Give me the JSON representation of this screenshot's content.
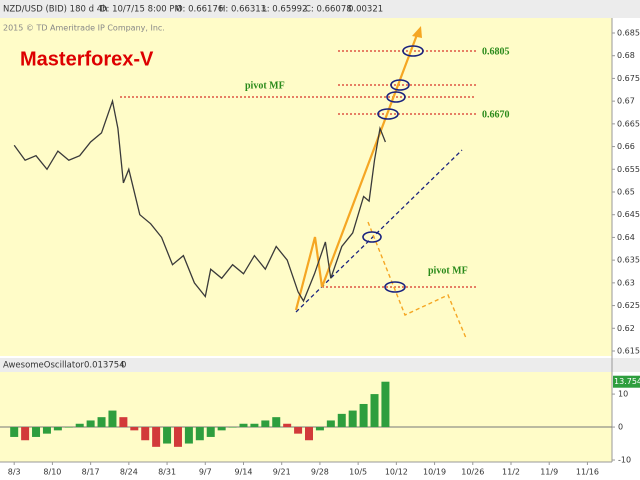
{
  "chart_data": [
    {
      "type": "line",
      "info": [
        "NZD/USD (BID) 180 d 4h",
        "D: 10/7/15 8:00 PM",
        "O: 0.66176",
        "H: 0.66313",
        "L: 0.65992",
        "C: 0.66078",
        "0.00321"
      ],
      "copyright": "2015 © TD Ameritrade IP Company, Inc.",
      "title": "Masterforex-V",
      "annotations": [
        "pivot MF",
        "0.6805",
        "0.6670",
        "pivot MF"
      ],
      "x": [
        0,
        2,
        4,
        6,
        8,
        10,
        12,
        14,
        16,
        18,
        19,
        20,
        21,
        23,
        25,
        27,
        29,
        31,
        33,
        35,
        36,
        38,
        40,
        42,
        44,
        46,
        48,
        50,
        52,
        53,
        55,
        57,
        58,
        60,
        62,
        64,
        65,
        66,
        67,
        68
      ],
      "values": [
        0.6603,
        0.657,
        0.658,
        0.655,
        0.659,
        0.657,
        0.658,
        0.661,
        0.663,
        0.67,
        0.664,
        0.652,
        0.655,
        0.645,
        0.643,
        0.64,
        0.634,
        0.636,
        0.63,
        0.627,
        0.633,
        0.631,
        0.634,
        0.632,
        0.636,
        0.633,
        0.638,
        0.635,
        0.628,
        0.626,
        0.632,
        0.639,
        0.631,
        0.638,
        0.641,
        0.649,
        0.648,
        0.657,
        0.664,
        0.661
      ],
      "color": "#3a3a3a",
      "xlim": [
        -2.6,
        109.5
      ],
      "ylim": [
        0.6139,
        0.6883
      ],
      "yticks": [
        0.615,
        0.62,
        0.625,
        0.63,
        0.635,
        0.64,
        0.645,
        0.65,
        0.655,
        0.66,
        0.665,
        0.67,
        0.675,
        0.68,
        0.685
      ]
    },
    {
      "type": "bar",
      "title": "AwesomeOscillator",
      "info": [
        "0.013754",
        "0"
      ],
      "x": [
        0,
        2,
        4,
        6,
        8,
        10,
        12,
        14,
        16,
        18,
        20,
        22,
        24,
        26,
        28,
        30,
        32,
        34,
        36,
        38,
        40,
        42,
        44,
        46,
        48,
        50,
        52,
        54,
        56,
        58,
        60,
        62,
        64,
        66,
        68
      ],
      "values": [
        -3,
        -4,
        -3,
        -2,
        -1,
        0,
        1,
        2,
        3,
        5,
        3,
        -1,
        -4,
        -6,
        -5,
        -6,
        -5,
        -4,
        -3,
        -1,
        0,
        1,
        1,
        2,
        3,
        1,
        -2,
        -4,
        -1,
        2,
        4,
        5,
        7,
        10,
        13.754
      ],
      "value_labels": [
        null,
        null,
        null,
        null,
        null,
        null,
        null,
        null,
        null,
        null,
        null,
        null,
        null,
        null,
        null,
        null,
        null,
        null,
        null,
        null,
        null,
        null,
        null,
        null,
        null,
        null,
        null,
        null,
        null,
        null,
        null,
        null,
        null,
        null,
        "13.754"
      ],
      "up_color": "#2e9e3e",
      "down_color": "#d23a3a",
      "xlim": [
        -2.6,
        109.5
      ],
      "ylim": [
        -10.6,
        16.7
      ],
      "yticks": [
        10,
        0,
        -10
      ],
      "xticks": [
        {
          "value": 0,
          "label": "8/3"
        },
        {
          "value": 7,
          "label": "8/10"
        },
        {
          "value": 14,
          "label": "8/17"
        },
        {
          "value": 21,
          "label": "8/24"
        },
        {
          "value": 28,
          "label": "8/31"
        },
        {
          "value": 35,
          "label": "9/7"
        },
        {
          "value": 42,
          "label": "9/14"
        },
        {
          "value": 49,
          "label": "9/21"
        },
        {
          "value": 56,
          "label": "9/28"
        },
        {
          "value": 63,
          "label": "10/5"
        },
        {
          "value": 70,
          "label": "10/12"
        },
        {
          "value": 77,
          "label": "10/19"
        },
        {
          "value": 84,
          "label": "10/26"
        },
        {
          "value": 91,
          "label": "11/2"
        },
        {
          "value": 98,
          "label": "11/9"
        },
        {
          "value": 105,
          "label": "11/16"
        }
      ]
    }
  ]
}
